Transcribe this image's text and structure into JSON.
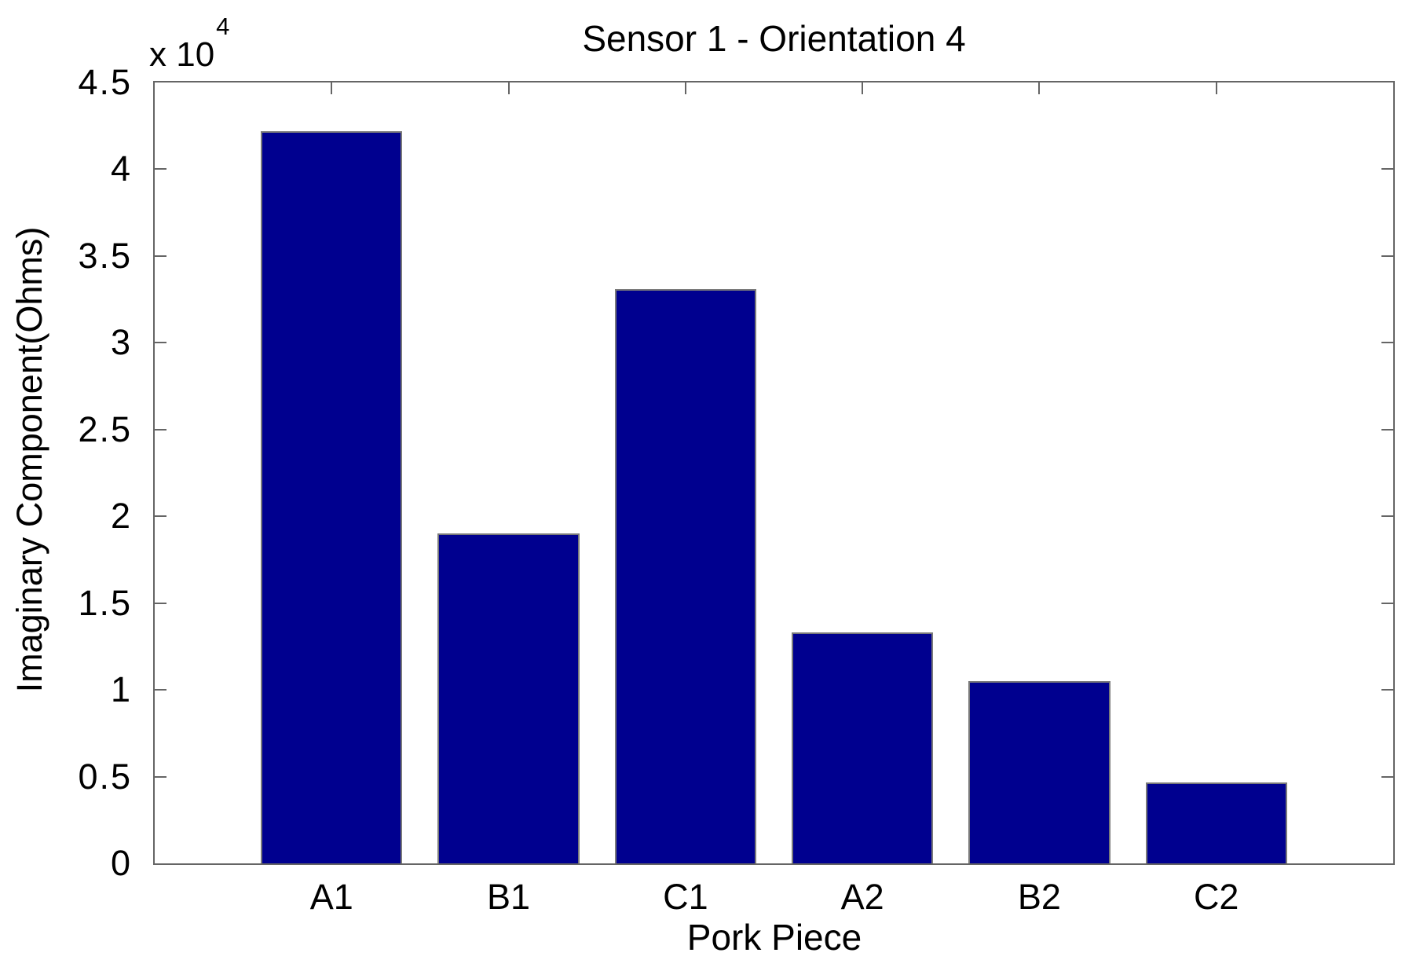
{
  "chart_data": {
    "type": "bar",
    "title": "Sensor 1 - Orientation 4",
    "xlabel": "Pork Piece",
    "ylabel": "Imaginary Component(Ohms)",
    "y_axis_multiplier": {
      "base": "x 10",
      "exponent": "4"
    },
    "categories": [
      "A1",
      "B1",
      "C1",
      "A2",
      "B2",
      "C2"
    ],
    "values": [
      42200,
      19000,
      33100,
      13300,
      10500,
      4650
    ],
    "ylim": [
      0,
      45000
    ],
    "ytick_labels": [
      "0",
      "0.5",
      "1",
      "1.5",
      "2",
      "2.5",
      "3",
      "3.5",
      "4",
      "4.5"
    ],
    "ytick_step": 5000,
    "xlim": [
      0,
      7
    ],
    "bar_width_ratio": 0.8,
    "grid": false,
    "legend": false,
    "colors": {
      "bar_fill": "#00008f",
      "bar_edge": "#7a7a7a",
      "axis": "#656565",
      "text": "#000000"
    }
  }
}
